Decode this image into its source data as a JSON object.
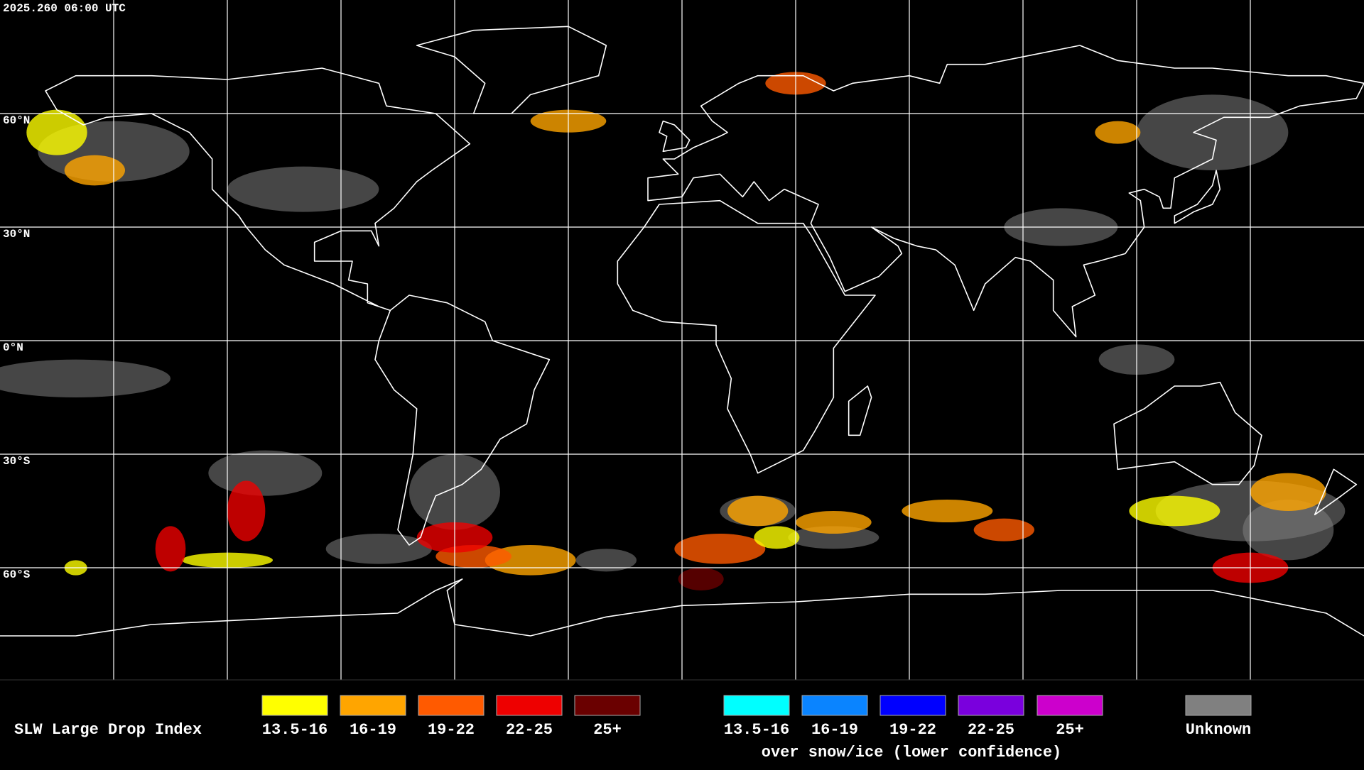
{
  "header": {
    "timestamp": "2025.260 06:00 UTC"
  },
  "map": {
    "latitude_labels": [
      "60°N",
      "30°N",
      "0°N",
      "30°S",
      "60°S"
    ]
  },
  "legend": {
    "title": "SLW Large Drop Index",
    "items": [
      {
        "label": "13.5-16",
        "color": "#ffff00"
      },
      {
        "label": "16-19",
        "color": "#ffa500"
      },
      {
        "label": "19-22",
        "color": "#ff5a00"
      },
      {
        "label": "22-25",
        "color": "#ee0000"
      },
      {
        "label": "25+",
        "color": "#6a0000"
      }
    ],
    "snow_items": [
      {
        "label": "13.5-16",
        "color": "#00ffff"
      },
      {
        "label": "16-19",
        "color": "#0a84ff"
      },
      {
        "label": "19-22",
        "color": "#0000ff"
      },
      {
        "label": "22-25",
        "color": "#7a00dd"
      },
      {
        "label": "25+",
        "color": "#cc00cc"
      }
    ],
    "snow_note": "over snow/ice (lower confidence)",
    "unknown": {
      "label": "Unknown",
      "color": "#808080"
    }
  }
}
